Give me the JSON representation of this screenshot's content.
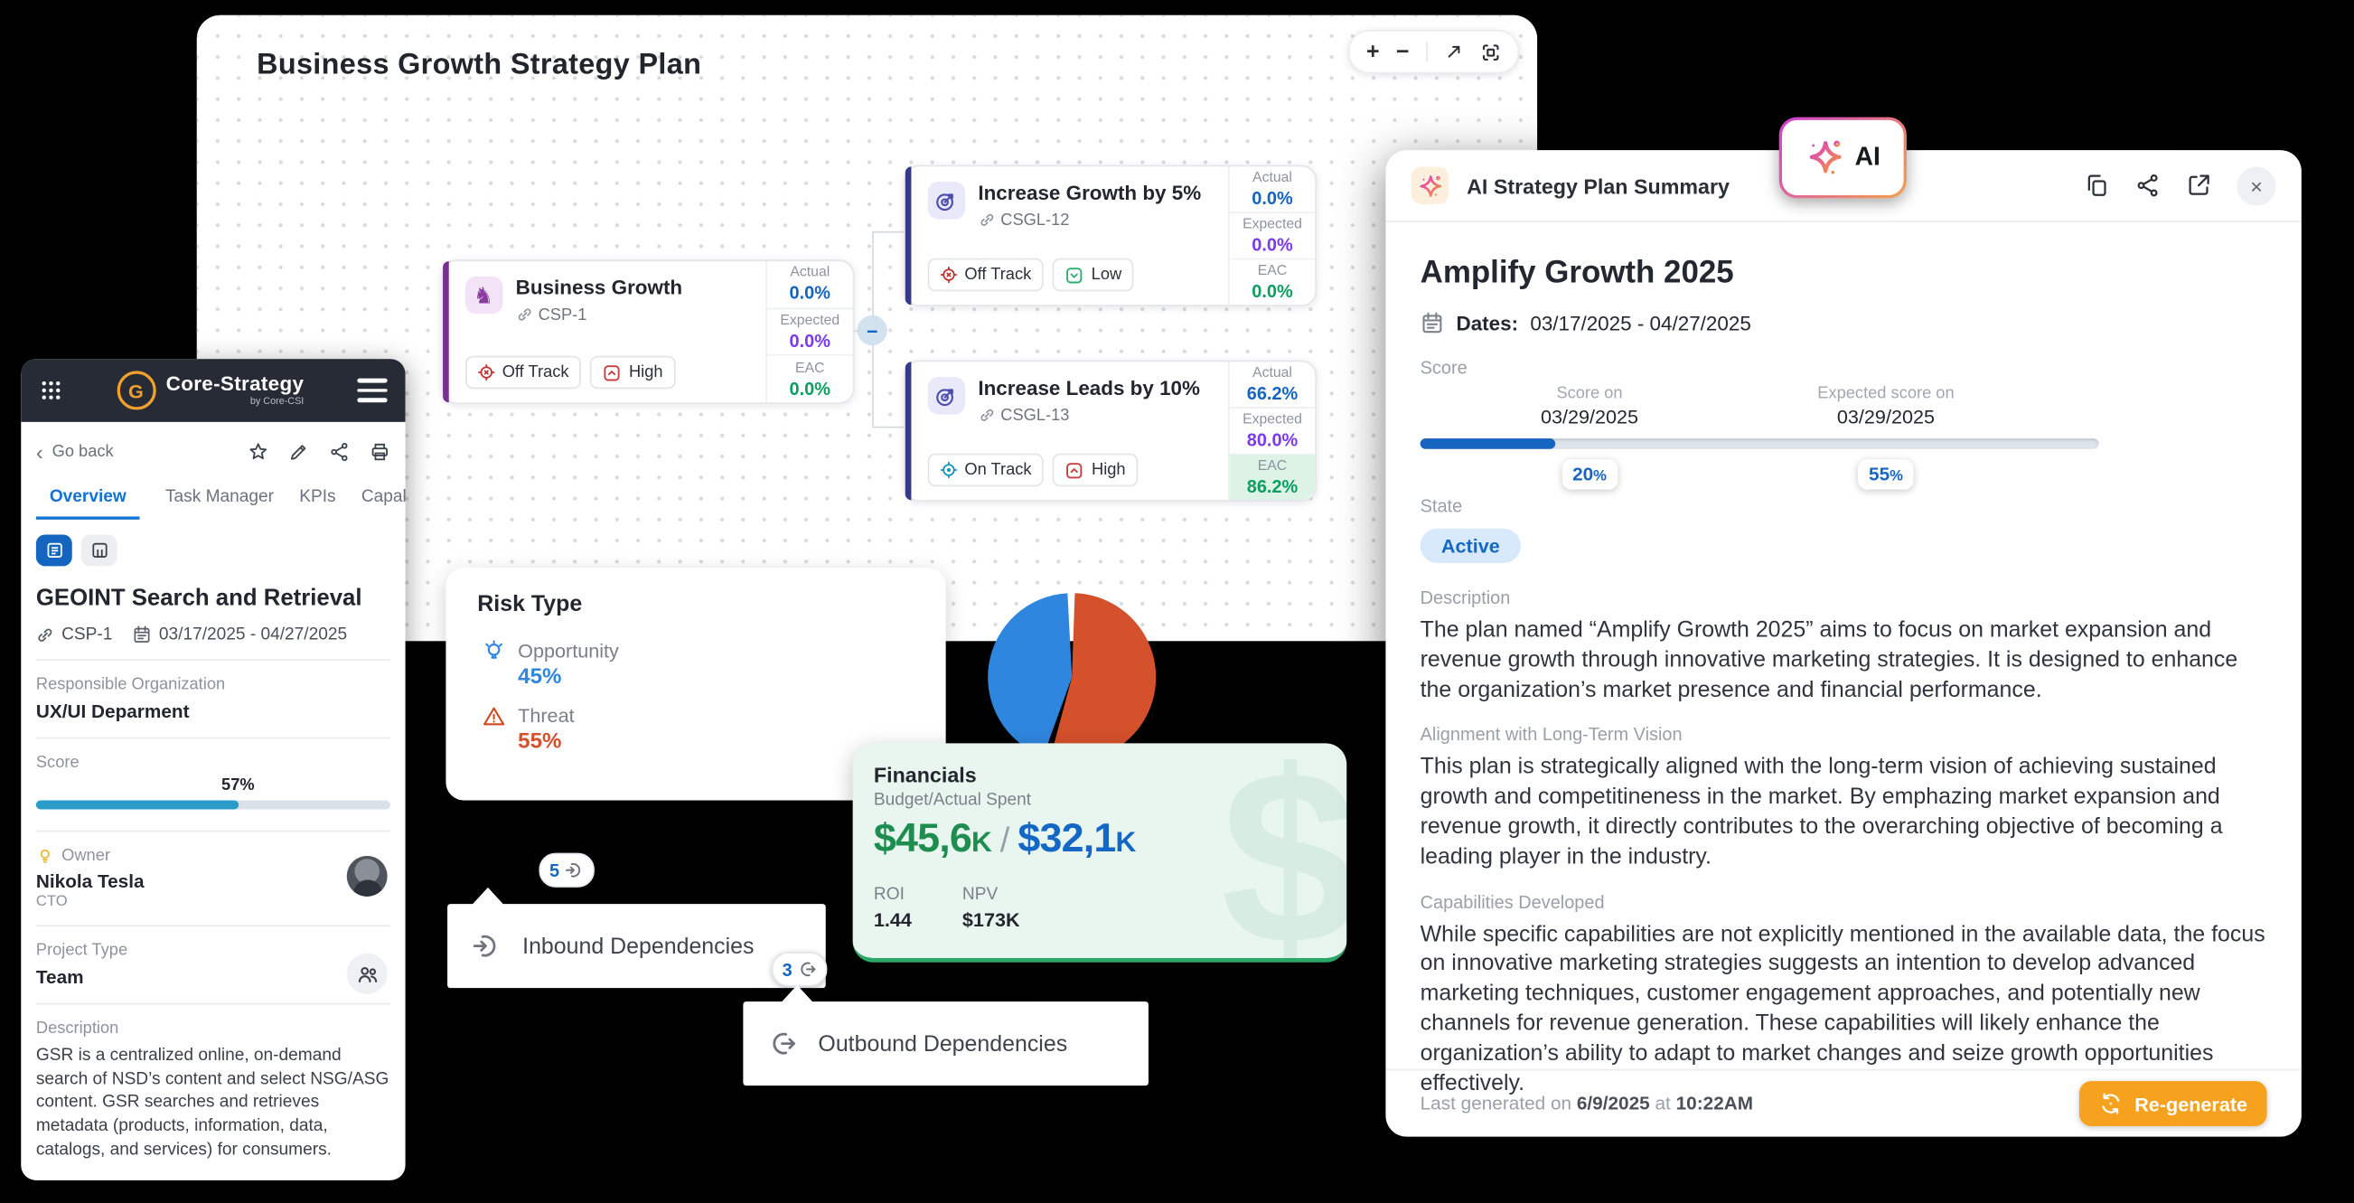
{
  "colors": {
    "accent_purple": "#7b2f92",
    "accent_indigo": "#34398b",
    "value_blue": "#1565c0",
    "value_purple": "#7c3aed",
    "value_green": "#0c9d61",
    "brand_orange": "#f0a02c",
    "tab_blue": "#1173d4",
    "score_bar_teal": "#2b9cc9",
    "ai_button_orange": "#f6a21e",
    "risk_opportunity_blue": "#2f86de",
    "risk_threat_red": "#d5512b",
    "financials_green": "#1e8e50",
    "financials_blue": "#1467c5"
  },
  "icons": {
    "zoom_in": "+",
    "zoom_out": "−",
    "close": "×",
    "collapse_node": "−",
    "back_chevron": "‹",
    "knight": "♞"
  },
  "canvas": {
    "title": "Business Growth Strategy Plan"
  },
  "metric_labels": {
    "actual": "Actual",
    "expected": "Expected",
    "eac": "EAC"
  },
  "cards": [
    {
      "title": "Business Growth",
      "id": "CSP-1",
      "status": "Off Track",
      "priority": "High",
      "actual": "0.0%",
      "expected": "0.0%",
      "eac": "0.0%"
    },
    {
      "title": "Increase Growth by 5%",
      "id": "CSGL-12",
      "status": "Off Track",
      "priority": "Low",
      "actual": "0.0%",
      "expected": "0.0%",
      "eac": "0.0%"
    },
    {
      "title": "Increase Leads by 10%",
      "id": "CSGL-13",
      "status": "On Track",
      "priority": "High",
      "actual": "66.2%",
      "expected": "80.0%",
      "eac": "86.2%"
    }
  ],
  "risk_panel": {
    "title": "Risk Type",
    "opportunity_label": "Opportunity",
    "opportunity_value": "45%",
    "threat_label": "Threat",
    "threat_value": "55%"
  },
  "chart_data": {
    "type": "pie",
    "title": "Risk Type",
    "labels": [
      "Threat",
      "Opportunity"
    ],
    "values": [
      55,
      45
    ],
    "colors": [
      "#d5512b",
      "#2f86de"
    ],
    "legend_position": "left"
  },
  "financials": {
    "title": "Financials",
    "subtitle": "Budget/Actual Spent",
    "budget": "$45,6",
    "budget_suffix": "K",
    "separator": " / ",
    "actual": "$32,1",
    "actual_suffix": "K",
    "roi_label": "ROI",
    "roi": "1.44",
    "npv_label": "NPV",
    "npv": "$173K",
    "watermark": "$"
  },
  "dependencies": {
    "inbound_count": "5",
    "inbound_label": "Inbound Dependencies",
    "outbound_count": "3",
    "outbound_label": "Outbound Dependencies"
  },
  "sidebar": {
    "brand": {
      "name": "Core-Strategy",
      "byline": "by Core-CSI"
    },
    "back_label": "Go back",
    "tabs": [
      {
        "label": "Overview"
      },
      {
        "label": "Task Manager"
      },
      {
        "label": "KPIs"
      },
      {
        "label": "Capabi"
      }
    ],
    "title": "GEOINT Search and Retrieval",
    "id": "CSP-1",
    "dates": "03/17/2025 - 04/27/2025",
    "fields": {
      "responsible_org_label": "Responsible Organization",
      "responsible_org": "UX/UI Deparment",
      "score_label": "Score",
      "score_pct": 57,
      "score_text": "57%",
      "owner_label": "Owner",
      "owner_name": "Nikola Tesla",
      "owner_role": "CTO",
      "project_type_label": "Project Type",
      "project_type": "Team",
      "description_label": "Description",
      "description": "GSR is a centralized online, on-demand search of NSD’s content and select NSG/ASG content. GSR searches and retrieves metadata (products, information, data, catalogs, and services) for consumers."
    }
  },
  "ai_badge": {
    "label": "AI"
  },
  "ai_panel": {
    "header_title": "AI Strategy Plan Summary",
    "plan_title": "Amplify Growth 2025",
    "dates_label": "Dates:",
    "dates_value": "03/17/2025 - 04/27/2025",
    "score": {
      "label": "Score",
      "current_caption": "Score on",
      "current_date": "03/29/2025",
      "current_pct": 20,
      "current_text": "20",
      "expected_caption": "Expected score on",
      "expected_date": "03/29/2025",
      "expected_pct": 55,
      "expected_text": "55",
      "pct_sign": "%"
    },
    "state_label": "State",
    "state_value": "Active",
    "sections": [
      {
        "heading": "Description",
        "text": "The plan named “Amplify Growth 2025” aims to focus on market expansion and revenue growth through innovative marketing strategies. It is designed to enhance the organization’s market presence and financial performance."
      },
      {
        "heading": "Alignment with Long-Term Vision",
        "text": "This plan is strategically aligned with the long-term vision of achieving sustained growth and competitineness in the market. By emphazing market expansion and revenue growth, it directly contributes to the overarching objective of becoming a leading player in the industry."
      },
      {
        "heading": "Capabilities Developed",
        "text": "While specific capabilities are not explicitly mentioned in the available data, the focus on innovative marketing strategies suggests an intention to develop advanced marketing techniques, customer engagement approaches, and potentially new channels for revenue generation. These capabilities will likely enhance the organization’s ability to adapt to market changes and seize growth opportunities effectively."
      }
    ],
    "footer": {
      "prefix": "Last generated on",
      "date": "6/9/2025",
      "at": "at",
      "time": "10:22AM",
      "button": "Re-generate"
    }
  }
}
